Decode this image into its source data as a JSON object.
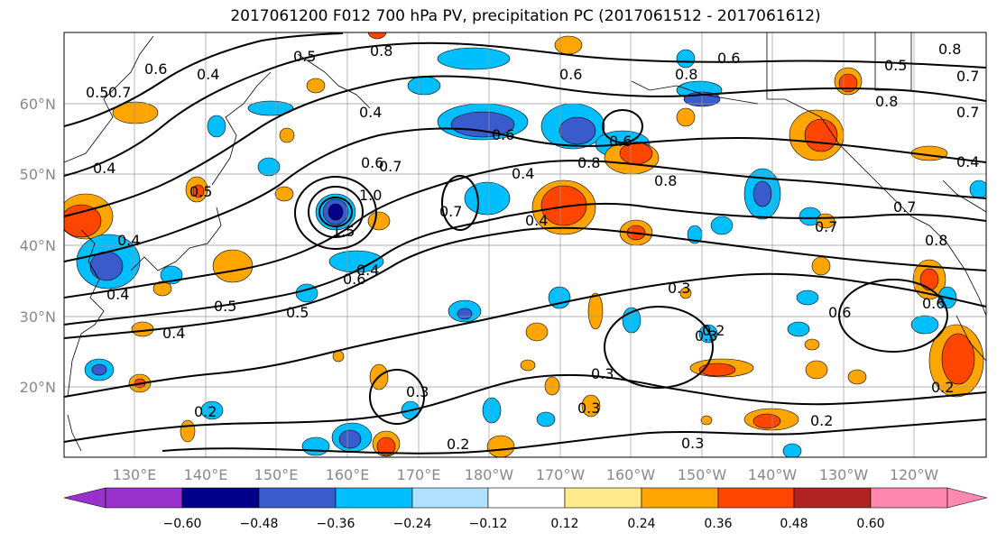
{
  "title": "2017061200 F012 700 hPa PV, precipitation PC (2017061512 - 2017061612)",
  "lat_labels": [
    "60°N",
    "50°N",
    "40°N",
    "30°N",
    "20°N"
  ],
  "lon_labels": [
    "130°E",
    "140°E",
    "150°E",
    "160°E",
    "170°E",
    "180°W",
    "170°W",
    "160°W",
    "150°W",
    "140°W",
    "130°W",
    "120°W"
  ],
  "colorbar": {
    "tick_labels": [
      "−0.60",
      "−0.48",
      "−0.36",
      "−0.24",
      "−0.12",
      "0.12",
      "0.24",
      "0.36",
      "0.48",
      "0.60"
    ],
    "colors": [
      "#9932cc",
      "#00008b",
      "#3a5bcb",
      "#00bfff",
      "#b0e2ff",
      "#ffffff",
      "#ffe98a",
      "#ffa500",
      "#ff4500",
      "#b22222",
      "#ff88b0"
    ]
  },
  "contour_labels": [
    "0.8",
    "0.5",
    "0.6",
    "0.4",
    "0.7",
    "0.5",
    "0.6",
    "0.4",
    "0.8",
    "0.6",
    "0.8",
    "0.6",
    "0.8",
    "0.4",
    "0.6",
    "0.4",
    "0.5",
    "0.4",
    "0.7",
    "1.5",
    "1.0",
    "0.4",
    "0.7",
    "0.4",
    "0.7",
    "0.4",
    "0.5",
    "0.5",
    "0.6",
    "0.3",
    "0.3",
    "0.6",
    "0.4",
    "0.3",
    "0.2",
    "0.3",
    "0.3",
    "0.2",
    "0.2",
    "0.2",
    "0.3",
    "0.2",
    "0.7",
    "0.8",
    "0.6",
    "0.8",
    "0.4",
    "0.6",
    "0.7",
    "0.8",
    "0.5",
    "0.7"
  ]
}
